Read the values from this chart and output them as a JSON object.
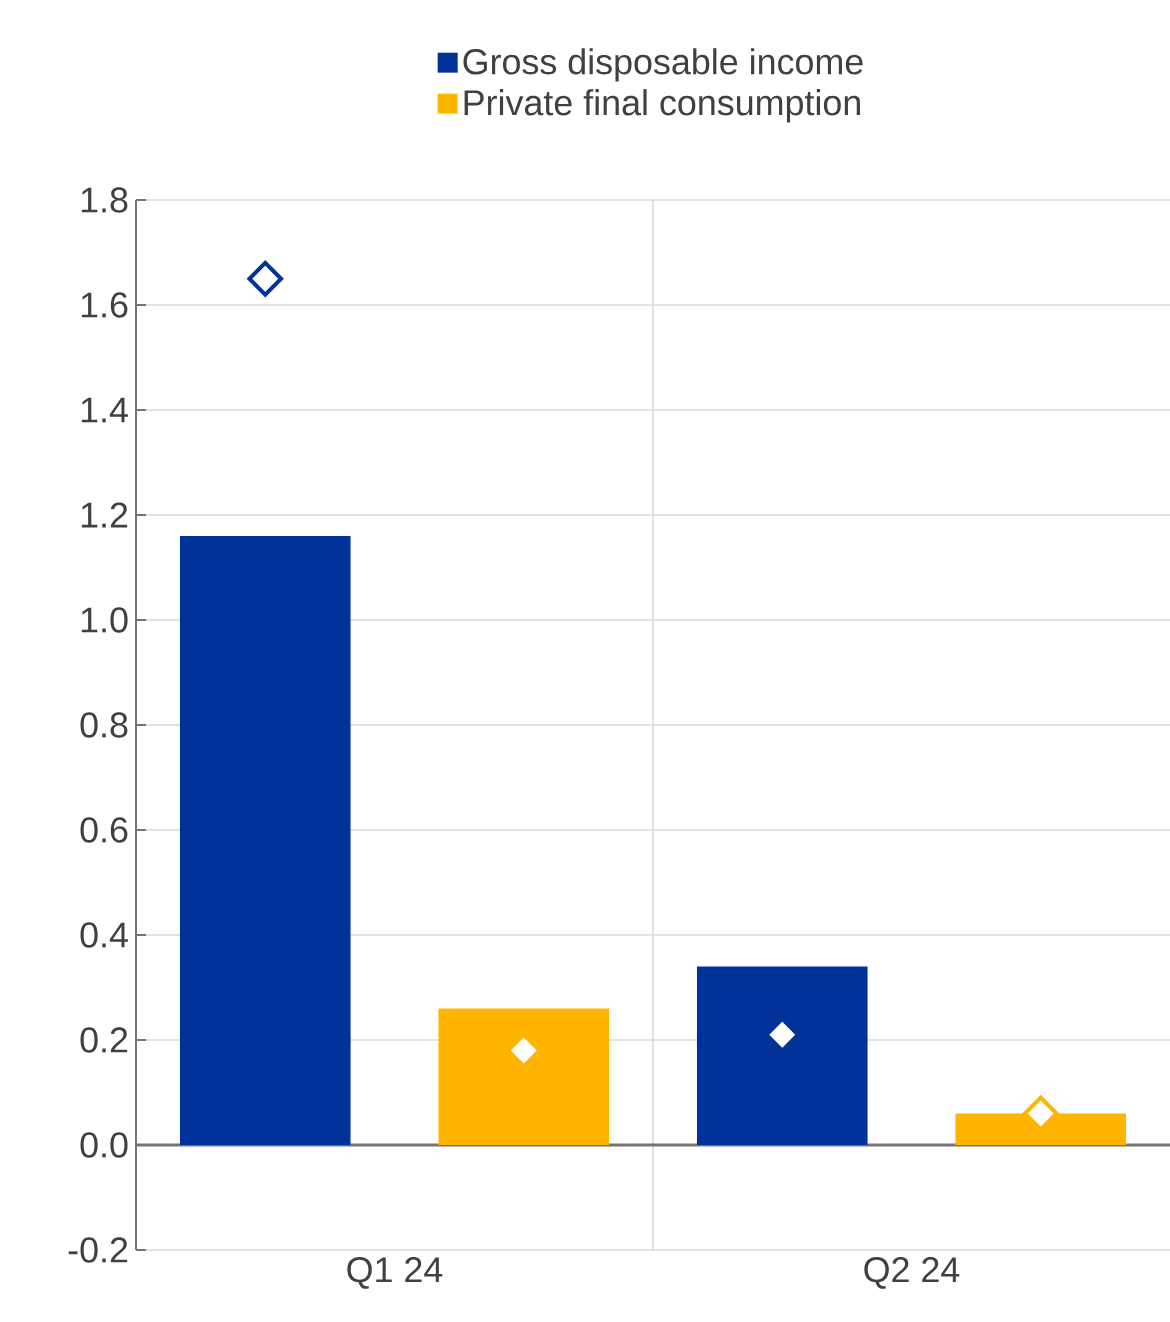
{
  "chart_data": {
    "type": "bar",
    "categories": [
      "Q1 24",
      "Q2 24"
    ],
    "series": [
      {
        "name": "Gross disposable income",
        "color": "#003299",
        "values": [
          1.16,
          0.34
        ]
      },
      {
        "name": "Private final consumption",
        "color": "#ffb400",
        "values": [
          0.26,
          0.06
        ]
      },
      {
        "type": "scatter",
        "color": "#003299",
        "x": [
          "Q1 24",
          "Q2 24"
        ],
        "values": [
          1.65,
          0.21
        ],
        "marker": "diamond"
      },
      {
        "type": "scatter",
        "color": "#ffb400",
        "x": [
          "Q1 24",
          "Q2 24"
        ],
        "values": [
          0.18,
          0.06
        ],
        "marker": "diamond"
      }
    ],
    "ylim": [
      -0.2,
      1.8
    ],
    "yticks": [
      {
        "value": -0.2,
        "label": "-0.2"
      },
      {
        "value": 0,
        "label": "0.0"
      },
      0.2,
      0.4,
      0.6,
      0.8,
      {
        "value": 1,
        "label": "1.0"
      },
      1.2,
      1.4,
      1.6,
      1.8
    ],
    "grid": true,
    "legend": "top"
  }
}
